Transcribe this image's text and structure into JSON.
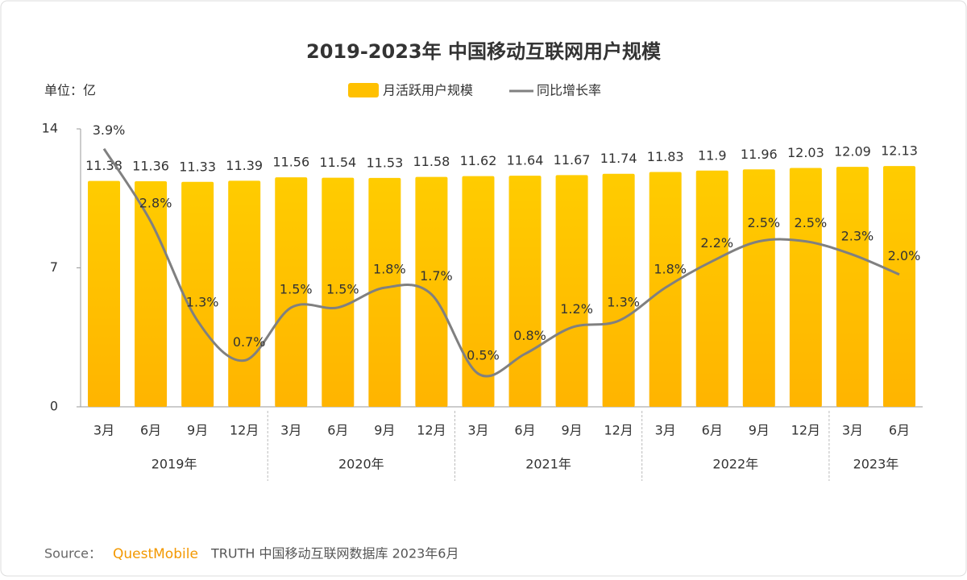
{
  "chart_data": {
    "type": "bar-line",
    "title": "2019-2023年 中国移动互联网用户规模",
    "unit_label": "单位：亿",
    "categories": [
      "3月",
      "6月",
      "9月",
      "12月",
      "3月",
      "6月",
      "9月",
      "12月",
      "3月",
      "6月",
      "9月",
      "12月",
      "3月",
      "6月",
      "9月",
      "12月",
      "3月",
      "6月"
    ],
    "group_labels": [
      "2019年",
      "2020年",
      "2021年",
      "2022年",
      "2023年"
    ],
    "group_sizes": [
      4,
      4,
      4,
      4,
      2
    ],
    "series": [
      {
        "name": "月活跃用户规模",
        "type": "bar",
        "color": "#FFC000",
        "values": [
          11.38,
          11.36,
          11.33,
          11.39,
          11.56,
          11.54,
          11.53,
          11.58,
          11.62,
          11.64,
          11.67,
          11.74,
          11.83,
          11.9,
          11.96,
          12.03,
          12.09,
          12.13
        ]
      },
      {
        "name": "同比增长率",
        "type": "line",
        "axis": "y2",
        "color": "#808080",
        "values": [
          3.9,
          2.8,
          1.3,
          0.7,
          1.5,
          1.5,
          1.8,
          1.7,
          0.5,
          0.8,
          1.2,
          1.3,
          1.8,
          2.2,
          2.5,
          2.5,
          2.3,
          2.0
        ],
        "value_labels": [
          "3.9%",
          "2.8%",
          "1.3%",
          "0.7%",
          "1.5%",
          "1.5%",
          "1.8%",
          "1.7%",
          "0.5%",
          "0.8%",
          "1.2%",
          "1.3%",
          "1.8%",
          "2.2%",
          "2.5%",
          "2.5%",
          "2.3%",
          "2.0%"
        ]
      }
    ],
    "ylim": [
      0,
      14
    ],
    "yticks": [
      0,
      7,
      14
    ],
    "y2lim": [
      0,
      4.2
    ]
  },
  "source": {
    "prefix": "Source：",
    "brand": "QuestMobile",
    "text": "TRUTH 中国移动互联网数据库 2023年6月"
  }
}
